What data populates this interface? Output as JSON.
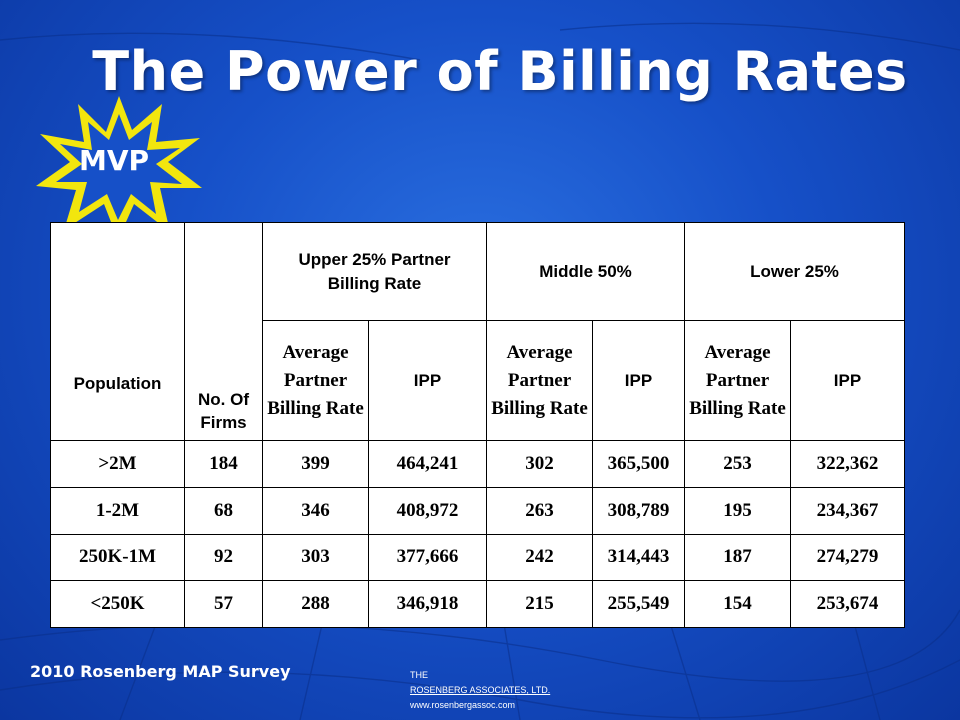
{
  "slide": {
    "title": "The Power of Billing Rates",
    "badge": "MVP",
    "footer_left": "2010 Rosenberg MAP Survey",
    "footer_brand": {
      "line1": "THE",
      "line2": "ROSENBERG ASSOCIATES, LTD.",
      "line3": "www.rosenbergassoc.com"
    }
  },
  "colors": {
    "background": "#1650c8",
    "badge_fill": "#f2e60e",
    "badge_inner": "#1650c8",
    "table_bg": "#ffffff"
  },
  "table": {
    "headers": {
      "population": "Population",
      "firms": "No. Of Firms",
      "upper": "Upper 25% Partner Billing Rate",
      "middle": "Middle 50%",
      "lower": "Lower 25%",
      "avg_rate": "Average Partner Billing Rate",
      "ipp": "IPP"
    },
    "rows": [
      {
        "population": ">2M",
        "firms": "184",
        "upper_rate": "399",
        "upper_ipp": "464,241",
        "middle_rate": "302",
        "middle_ipp": "365,500",
        "lower_rate": "253",
        "lower_ipp": "322,362"
      },
      {
        "population": "1-2M",
        "firms": "68",
        "upper_rate": "346",
        "upper_ipp": "408,972",
        "middle_rate": "263",
        "middle_ipp": "308,789",
        "lower_rate": "195",
        "lower_ipp": "234,367"
      },
      {
        "population": "250K-1M",
        "firms": "92",
        "upper_rate": "303",
        "upper_ipp": "377,666",
        "middle_rate": "242",
        "middle_ipp": "314,443",
        "lower_rate": "187",
        "lower_ipp": "274,279"
      },
      {
        "population": "<250K",
        "firms": "57",
        "upper_rate": "288",
        "upper_ipp": "346,918",
        "middle_rate": "215",
        "middle_ipp": "255,549",
        "lower_rate": "154",
        "lower_ipp": "253,674"
      }
    ]
  }
}
